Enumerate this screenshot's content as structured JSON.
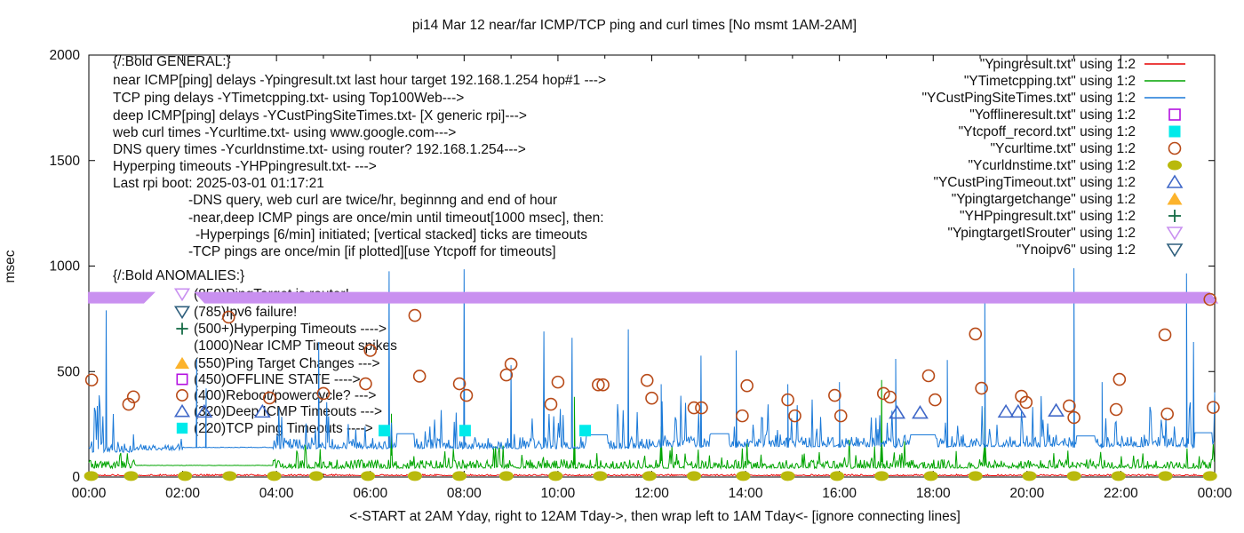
{
  "chart_data": {
    "type": "line",
    "title": "pi14 Mar 12  near/far ICMP/TCP ping and curl times [No msmt 1AM-2AM]",
    "xlabel": "<-START at 2AM Yday, right to 12AM Tday->, then wrap left to 1AM Tday<- [ignore connecting lines]",
    "ylabel": "msec",
    "ylim": [
      0,
      2000
    ],
    "xlim_hours": [
      0,
      24
    ],
    "y_ticks": [
      "0",
      "500",
      "1000",
      "1500",
      "2000"
    ],
    "y_tick_values": [
      0,
      500,
      1000,
      1500,
      2000
    ],
    "x_tick_labels": [
      "00:00",
      "02:00",
      "04:00",
      "06:00",
      "08:00",
      "10:00",
      "12:00",
      "14:00",
      "16:00",
      "18:00",
      "20:00",
      "22:00",
      "00:00"
    ],
    "x_tick_hours": [
      0,
      2,
      4,
      6,
      8,
      10,
      12,
      14,
      16,
      18,
      20,
      22,
      24
    ],
    "grid": false,
    "legend_position": "top-right",
    "series": [
      {
        "name": "Ypingresult.txt",
        "legend_label": "\"Ypingresult.txt\" using 1:2",
        "type": "line",
        "color": "#e60000",
        "width": 1,
        "gen": {
          "seed": 11,
          "step": 0.02,
          "segments": [
            {
              "from": 0,
              "to": 24,
              "base": 8,
              "amp": 7,
              "spike_prob": 0.0,
              "spike_amp": 0
            }
          ]
        },
        "flats": [],
        "spikes": []
      },
      {
        "name": "YTimetcpping.txt",
        "legend_label": "\"YTimetcpping.txt\" using 1:2",
        "type": "line",
        "color": "#00a400",
        "width": 1,
        "gen": {
          "seed": 23,
          "step": 0.02,
          "segments": [
            {
              "from": 0,
              "to": 1.0,
              "base": 52,
              "amp": 40,
              "spike_prob": 0.05,
              "spike_amp": 60
            },
            {
              "from": 1.0,
              "to": 3.93,
              "base": 55,
              "amp": 2,
              "spike_prob": 0,
              "spike_amp": 0
            },
            {
              "from": 3.93,
              "to": 24,
              "base": 52,
              "amp": 42,
              "spike_prob": 0.06,
              "spike_amp": 100
            }
          ]
        },
        "flats": [],
        "spikes": [
          [
            6.45,
            300
          ],
          [
            10.35,
            380
          ],
          [
            12.2,
            240
          ],
          [
            16.9,
            460
          ],
          [
            19.1,
            330
          ]
        ]
      },
      {
        "name": "YCustPingSiteTimes.txt",
        "legend_label": "\"YCustPingSiteTimes.txt\" using 1:2",
        "type": "line",
        "color": "#1a79d8",
        "width": 1,
        "gen": {
          "seed": 7,
          "step": 0.02,
          "segments": [
            {
              "from": 0,
              "to": 0.95,
              "base": 135,
              "amp": 70,
              "spike_prob": 0.12,
              "spike_amp": 250
            },
            {
              "from": 0.95,
              "to": 2.0,
              "base": 135,
              "amp": 28,
              "spike_prob": 0.04,
              "spike_amp": 120
            },
            {
              "from": 2.0,
              "to": 3.93,
              "base": 140,
              "amp": 3,
              "spike_prob": 0,
              "spike_amp": 0
            },
            {
              "from": 3.93,
              "to": 12,
              "base": 148,
              "amp": 55,
              "spike_prob": 0.1,
              "spike_amp": 200
            },
            {
              "from": 12,
              "to": 24,
              "base": 158,
              "amp": 58,
              "spike_prob": 0.11,
              "spike_amp": 210
            }
          ]
        },
        "flats": [
          [
            6.55,
            6.93,
            205
          ],
          [
            10.6,
            11.05,
            200
          ],
          [
            13.25,
            13.65,
            205
          ],
          [
            17.5,
            18.05,
            200
          ],
          [
            21.05,
            21.45,
            195
          ],
          [
            23.55,
            23.95,
            210
          ]
        ],
        "spikes": [
          [
            0.37,
            790
          ],
          [
            2.3,
            560
          ],
          [
            2.5,
            420
          ],
          [
            4.9,
            640
          ],
          [
            6.4,
            975
          ],
          [
            8.0,
            985
          ],
          [
            9.0,
            530
          ],
          [
            9.7,
            690
          ],
          [
            10.3,
            660
          ],
          [
            11.5,
            700
          ],
          [
            12.2,
            440
          ],
          [
            13.05,
            575
          ],
          [
            13.8,
            600
          ],
          [
            14.9,
            440
          ],
          [
            16.0,
            450
          ],
          [
            17.2,
            560
          ],
          [
            18.3,
            555
          ],
          [
            19.1,
            870
          ],
          [
            21.0,
            990
          ],
          [
            21.6,
            450
          ],
          [
            23.4,
            965
          ],
          [
            23.55,
            640
          ]
        ]
      },
      {
        "name": "Yofflineresult.txt",
        "legend_label": "\"Yofflineresult.txt\" using 1:2",
        "type": "scatter",
        "marker": "square-open",
        "color": "#b311e0",
        "points": []
      },
      {
        "name": "Ytcpoff_record.txt",
        "legend_label": "\"Ytcpoff_record.txt\" using 1:2",
        "type": "scatter",
        "marker": "square-fill",
        "color": "#00eaea",
        "points": [
          [
            6.3,
            220
          ],
          [
            8.02,
            220
          ],
          [
            10.58,
            220
          ]
        ]
      },
      {
        "name": "Ycurltime.txt",
        "legend_label": "\"Ycurltime.txt\" using 1:2",
        "type": "scatter",
        "marker": "circle-open",
        "color": "#b84a18",
        "points": [
          [
            0.06,
            460
          ],
          [
            0.85,
            345
          ],
          [
            0.95,
            380
          ],
          [
            2.98,
            758
          ],
          [
            3.85,
            375
          ],
          [
            5.0,
            396
          ],
          [
            5.9,
            442
          ],
          [
            6.0,
            600
          ],
          [
            6.95,
            766
          ],
          [
            7.05,
            478
          ],
          [
            7.9,
            442
          ],
          [
            8.05,
            387
          ],
          [
            8.9,
            484
          ],
          [
            9.0,
            535
          ],
          [
            9.85,
            345
          ],
          [
            10.0,
            450
          ],
          [
            10.86,
            437
          ],
          [
            10.96,
            437
          ],
          [
            11.9,
            458
          ],
          [
            12.0,
            374
          ],
          [
            12.9,
            328
          ],
          [
            13.06,
            328
          ],
          [
            13.93,
            290
          ],
          [
            14.03,
            433
          ],
          [
            14.9,
            366
          ],
          [
            15.05,
            290
          ],
          [
            15.9,
            387
          ],
          [
            16.03,
            290
          ],
          [
            16.94,
            396
          ],
          [
            17.08,
            379
          ],
          [
            17.9,
            480
          ],
          [
            18.04,
            366
          ],
          [
            18.9,
            678
          ],
          [
            19.03,
            421
          ],
          [
            19.88,
            383
          ],
          [
            19.98,
            354
          ],
          [
            20.9,
            337
          ],
          [
            21.0,
            282
          ],
          [
            21.9,
            320
          ],
          [
            21.97,
            463
          ],
          [
            22.94,
            674
          ],
          [
            22.99,
            299
          ],
          [
            23.9,
            842
          ],
          [
            23.97,
            330
          ]
        ]
      },
      {
        "name": "Ycurldnstime.txt",
        "legend_label": "\"Ycurldnstime.txt\" using 1:2",
        "type": "scatter",
        "marker": "dot",
        "color": "#b9b90c",
        "points": [
          [
            0.05,
            5
          ],
          [
            0.9,
            5
          ],
          [
            2.05,
            5
          ],
          [
            3.0,
            5
          ],
          [
            3.95,
            5
          ],
          [
            4.85,
            5
          ],
          [
            5.95,
            5
          ],
          [
            6.95,
            5
          ],
          [
            7.9,
            5
          ],
          [
            8.9,
            5
          ],
          [
            9.95,
            5
          ],
          [
            10.9,
            5
          ],
          [
            11.95,
            5
          ],
          [
            12.9,
            5
          ],
          [
            13.95,
            5
          ],
          [
            14.9,
            5
          ],
          [
            15.95,
            5
          ],
          [
            16.9,
            5
          ],
          [
            17.95,
            5
          ],
          [
            18.9,
            5
          ],
          [
            20.05,
            5
          ],
          [
            21.0,
            5
          ],
          [
            21.95,
            5
          ],
          [
            22.95,
            5
          ],
          [
            23.9,
            5
          ]
        ]
      },
      {
        "name": "YCustPingTimeout.txt",
        "legend_label": "\"YCustPingTimeout.txt\" using 1:2",
        "type": "scatter",
        "marker": "triangle-up-open",
        "color": "#4068c8",
        "points": [
          [
            2.46,
            310
          ],
          [
            3.7,
            310
          ],
          [
            17.23,
            305
          ],
          [
            17.72,
            305
          ],
          [
            19.55,
            310
          ],
          [
            19.81,
            310
          ],
          [
            20.62,
            315
          ]
        ]
      },
      {
        "name": "Ypingtargetchange",
        "legend_label": "\"Ypingtargetchange\" using 1:2",
        "type": "scatter",
        "marker": "triangle-up-fill",
        "color": "#fcb32c",
        "points": []
      },
      {
        "name": "YHPpingresult.txt",
        "legend_label": "\"YHPpingresult.txt\" using 1:2",
        "type": "scatter",
        "marker": "plus",
        "color": "#156b45",
        "points": []
      },
      {
        "name": "YpingtargetISrouter",
        "legend_label": "\"YpingtargetISrouter\" using 1:2",
        "type": "band",
        "marker": "triangle-down-open",
        "color": "#c990f0",
        "value": 850,
        "half_thickness": 6.5,
        "segments": [
          [
            -0.02,
            1.42
          ],
          [
            2.24,
            24.08
          ]
        ]
      },
      {
        "name": "Ynoipv6",
        "legend_label": "\"Ynoipv6\" using 1:2",
        "type": "scatter",
        "marker": "triangle-down-open",
        "color": "#2f5f7d",
        "points": []
      }
    ],
    "annotations": {
      "general": [
        {
          "x": 127,
          "y": 74,
          "text": "{/:Bold GENERAL:}"
        },
        {
          "x": 127,
          "y": 95,
          "text": "near ICMP[ping] delays -Ypingresult.txt last hour target 192.168.1.254 hop#1 --->"
        },
        {
          "x": 127,
          "y": 115,
          "text": "TCP ping delays -YTimetcpping.txt- using Top100Web--->"
        },
        {
          "x": 127,
          "y": 135,
          "text": "deep ICMP[ping] delays -YCustPingSiteTimes.txt- [X generic rpi]--->"
        },
        {
          "x": 127,
          "y": 154,
          "text": "web curl times -Ycurltime.txt- using www.google.com--->"
        },
        {
          "x": 127,
          "y": 173,
          "text": "DNS query times -Ycurldnstime.txt- using router? 192.168.1.254--->"
        },
        {
          "x": 127,
          "y": 192,
          "text": "Hyperping timeouts -YHPpingresult.txt- --->"
        },
        {
          "x": 127,
          "y": 211,
          "text": "Last rpi boot: 2025-03-01 01:17:21"
        },
        {
          "x": 212,
          "y": 230,
          "text": "-DNS query, web curl are twice/hr, beginnng and end of hour"
        },
        {
          "x": 212,
          "y": 250,
          "text": "-near,deep ICMP pings are once/min until timeout[1000 msec], then:"
        },
        {
          "x": 220,
          "y": 269,
          "text": "-Hyperpings [6/min] initiated; [vertical stacked] ticks are timeouts"
        },
        {
          "x": 212,
          "y": 288,
          "text": "-TCP pings are once/min [if plotted][use Ytcpoff for timeouts]"
        }
      ],
      "anomalies": [
        {
          "x": 127,
          "y": 315,
          "text": "{/:Bold ANOMALIES:}"
        },
        {
          "x": 218,
          "y": 336,
          "marker": "triangle-down-open",
          "marker_color": "#c990f0",
          "text": "(850)PingTarget is router!"
        },
        {
          "x": 218,
          "y": 356,
          "marker": "triangle-down-open",
          "marker_color": "#2f5f7d",
          "text": "(785)Ipv6 failure!"
        },
        {
          "x": 218,
          "y": 375,
          "marker": "plus",
          "marker_color": "#156b45",
          "text": "(500+)Hyperping Timeouts ---->"
        },
        {
          "x": 218,
          "y": 394,
          "text": "(1000)Near ICMP Timeout spikes"
        },
        {
          "x": 218,
          "y": 414,
          "marker": "triangle-up-fill",
          "marker_color": "#fcb32c",
          "text": "(550)Ping Target Changes --->"
        },
        {
          "x": 218,
          "y": 432,
          "marker": "square-open",
          "marker_color": "#b311e0",
          "text": "(450)OFFLINE STATE ---->"
        },
        {
          "x": 218,
          "y": 450,
          "marker": "circle-open",
          "marker_color": "#b84a18",
          "text": "(400)Reboot/powercycle? --->"
        },
        {
          "x": 218,
          "y": 468,
          "marker": "triangle-up-open",
          "marker_color": "#4068c8",
          "text": "(320)Deep ICMP Timeouts --->"
        },
        {
          "x": 218,
          "y": 487,
          "marker": "square-fill",
          "marker_color": "#00eaea",
          "text": "(220)TCP ping Timeouts ---->"
        }
      ]
    }
  }
}
